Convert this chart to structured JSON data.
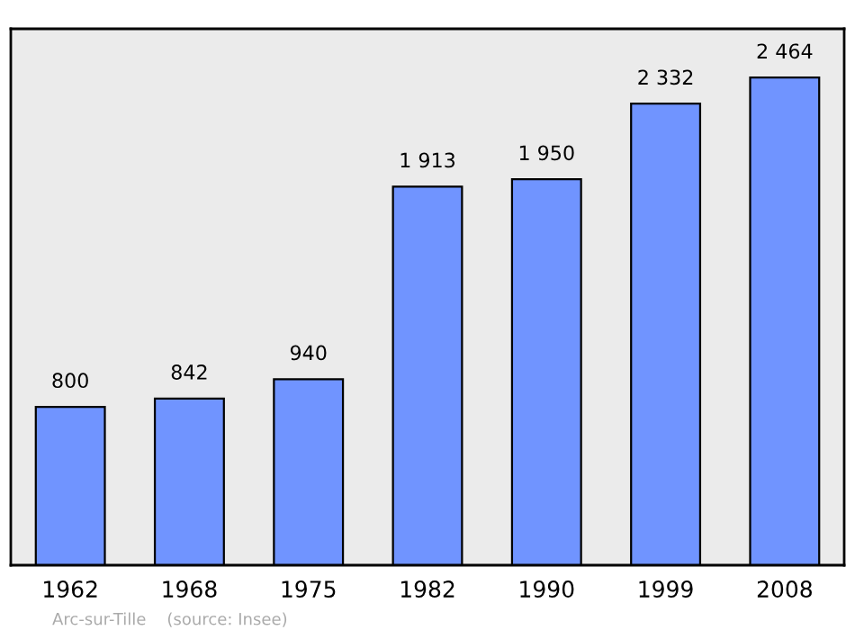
{
  "chart_data": {
    "type": "bar",
    "categories": [
      "1962",
      "1968",
      "1975",
      "1982",
      "1990",
      "1999",
      "2008"
    ],
    "values": [
      800,
      842,
      940,
      1913,
      1950,
      2332,
      2464
    ],
    "value_labels": [
      "800",
      "842",
      "940",
      "1 913",
      "1 950",
      "2 332",
      "2 464"
    ],
    "color": "#7094ff",
    "grid": false,
    "legend": false,
    "annotations": [
      "Arc-sur-Tille    (source: Insee)"
    ]
  }
}
